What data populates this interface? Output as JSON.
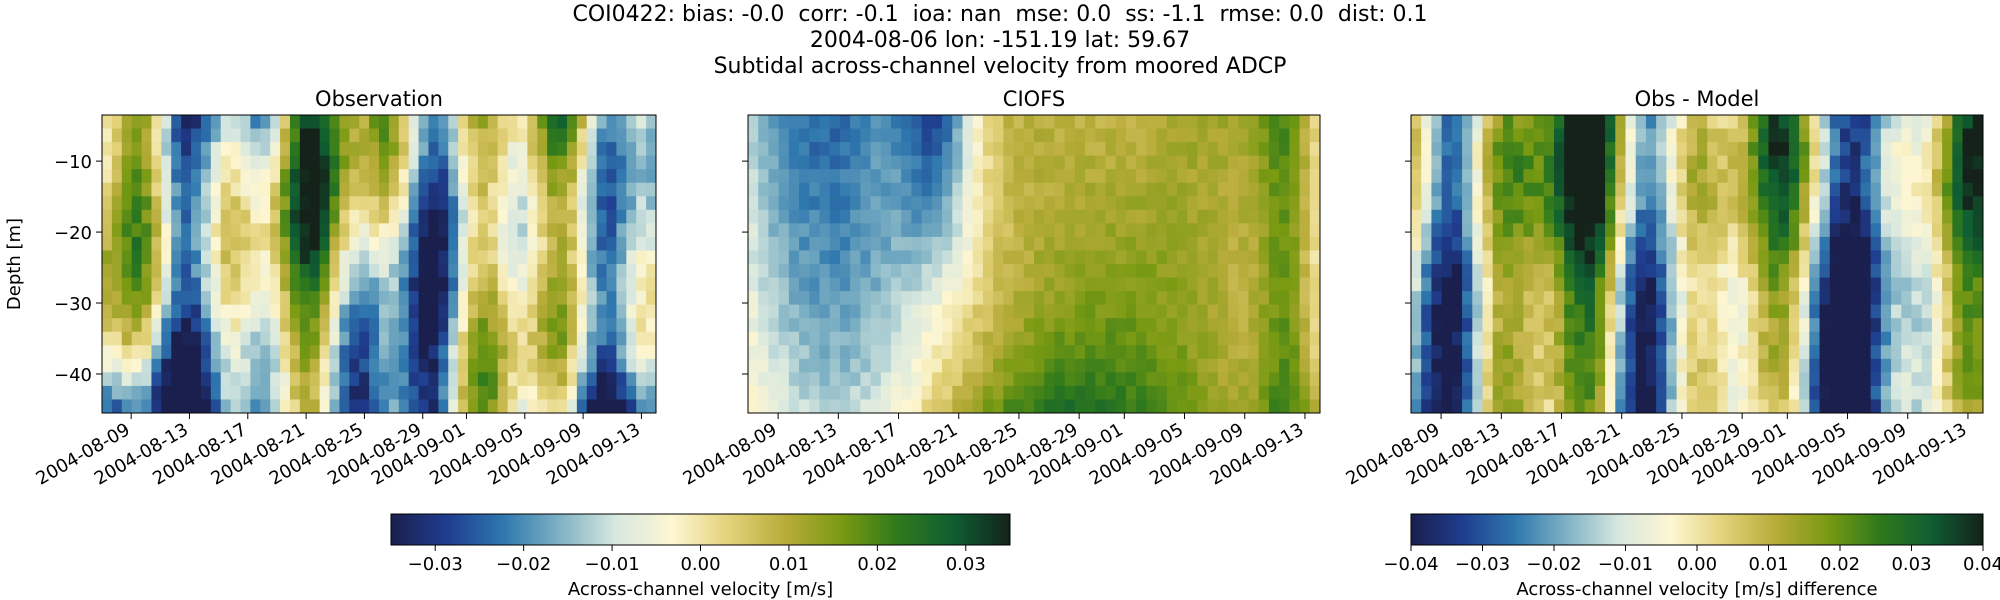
{
  "title_lines": [
    "COI0422: bias: -0.0  corr: -0.1  ioa: nan  mse: 0.0  ss: -1.1  rmse: 0.0  dist: 0.1",
    "2004-08-06 lon: -151.19 lat: 59.67",
    "Subtidal across-channel velocity from moored ADCP"
  ],
  "colormap": [
    "#1a1f4d",
    "#1f3d8f",
    "#2f78ae",
    "#7fb2c4",
    "#d8e8e0",
    "#fdf6d2",
    "#e3d27a",
    "#b8ac3a",
    "#7a9a12",
    "#2f7a1c",
    "#0f5e32",
    "#14221a"
  ],
  "chart_data": [
    {
      "type": "heatmap",
      "title": "Observation",
      "xlabel": "",
      "ylabel": "Depth [m]",
      "x_ticks": [
        "2004-08-09",
        "2004-08-13",
        "2004-08-17",
        "2004-08-21",
        "2004-08-25",
        "2004-08-29",
        "2004-09-01",
        "2004-09-05",
        "2004-09-09",
        "2004-09-13"
      ],
      "y_ticks": [
        -10,
        -20,
        -30,
        -40
      ],
      "ylim": [
        -45.5,
        -3.5
      ],
      "x_range": [
        "2004-08-07",
        "2004-09-14"
      ],
      "color_range": [
        -0.035,
        0.035
      ],
      "colorbar": "shared-left"
    },
    {
      "type": "heatmap",
      "title": "CIOFS",
      "xlabel": "",
      "ylabel": "",
      "x_ticks": [
        "2004-08-09",
        "2004-08-13",
        "2004-08-17",
        "2004-08-21",
        "2004-08-25",
        "2004-08-29",
        "2004-09-01",
        "2004-09-05",
        "2004-09-09",
        "2004-09-13"
      ],
      "y_ticks": [
        -10,
        -20,
        -30,
        -40
      ],
      "ylim": [
        -45.5,
        -3.5
      ],
      "x_range": [
        "2004-08-07",
        "2004-09-14"
      ],
      "color_range": [
        -0.035,
        0.035
      ],
      "colorbar": "shared-left"
    },
    {
      "type": "heatmap",
      "title": "Obs - Model",
      "xlabel": "",
      "ylabel": "",
      "x_ticks": [
        "2004-08-09",
        "2004-08-13",
        "2004-08-17",
        "2004-08-21",
        "2004-08-25",
        "2004-08-29",
        "2004-09-01",
        "2004-09-05",
        "2004-09-09",
        "2004-09-13"
      ],
      "y_ticks": [
        -10,
        -20,
        -30,
        -40
      ],
      "ylim": [
        -45.5,
        -3.5
      ],
      "x_range": [
        "2004-08-07",
        "2004-09-14"
      ],
      "color_range": [
        -0.04,
        0.04
      ],
      "colorbar": "right"
    }
  ],
  "colorbars": [
    {
      "label": "Across-channel velocity [m/s]",
      "range": [
        -0.035,
        0.035
      ],
      "ticks": [
        -0.03,
        -0.02,
        -0.01,
        0.0,
        0.01,
        0.02,
        0.03
      ],
      "tick_labels": [
        "−0.03",
        "−0.02",
        "−0.01",
        "0.00",
        "0.01",
        "0.02",
        "0.03"
      ]
    },
    {
      "label": "Across-channel velocity [m/s] difference",
      "range": [
        -0.04,
        0.04
      ],
      "ticks": [
        -0.04,
        -0.03,
        -0.02,
        -0.01,
        0.0,
        0.01,
        0.02,
        0.03,
        0.04
      ],
      "tick_labels": [
        "−0.04",
        "−0.03",
        "−0.02",
        "−0.01",
        "0.00",
        "0.01",
        "0.02",
        "0.03",
        "0.04"
      ]
    }
  ]
}
